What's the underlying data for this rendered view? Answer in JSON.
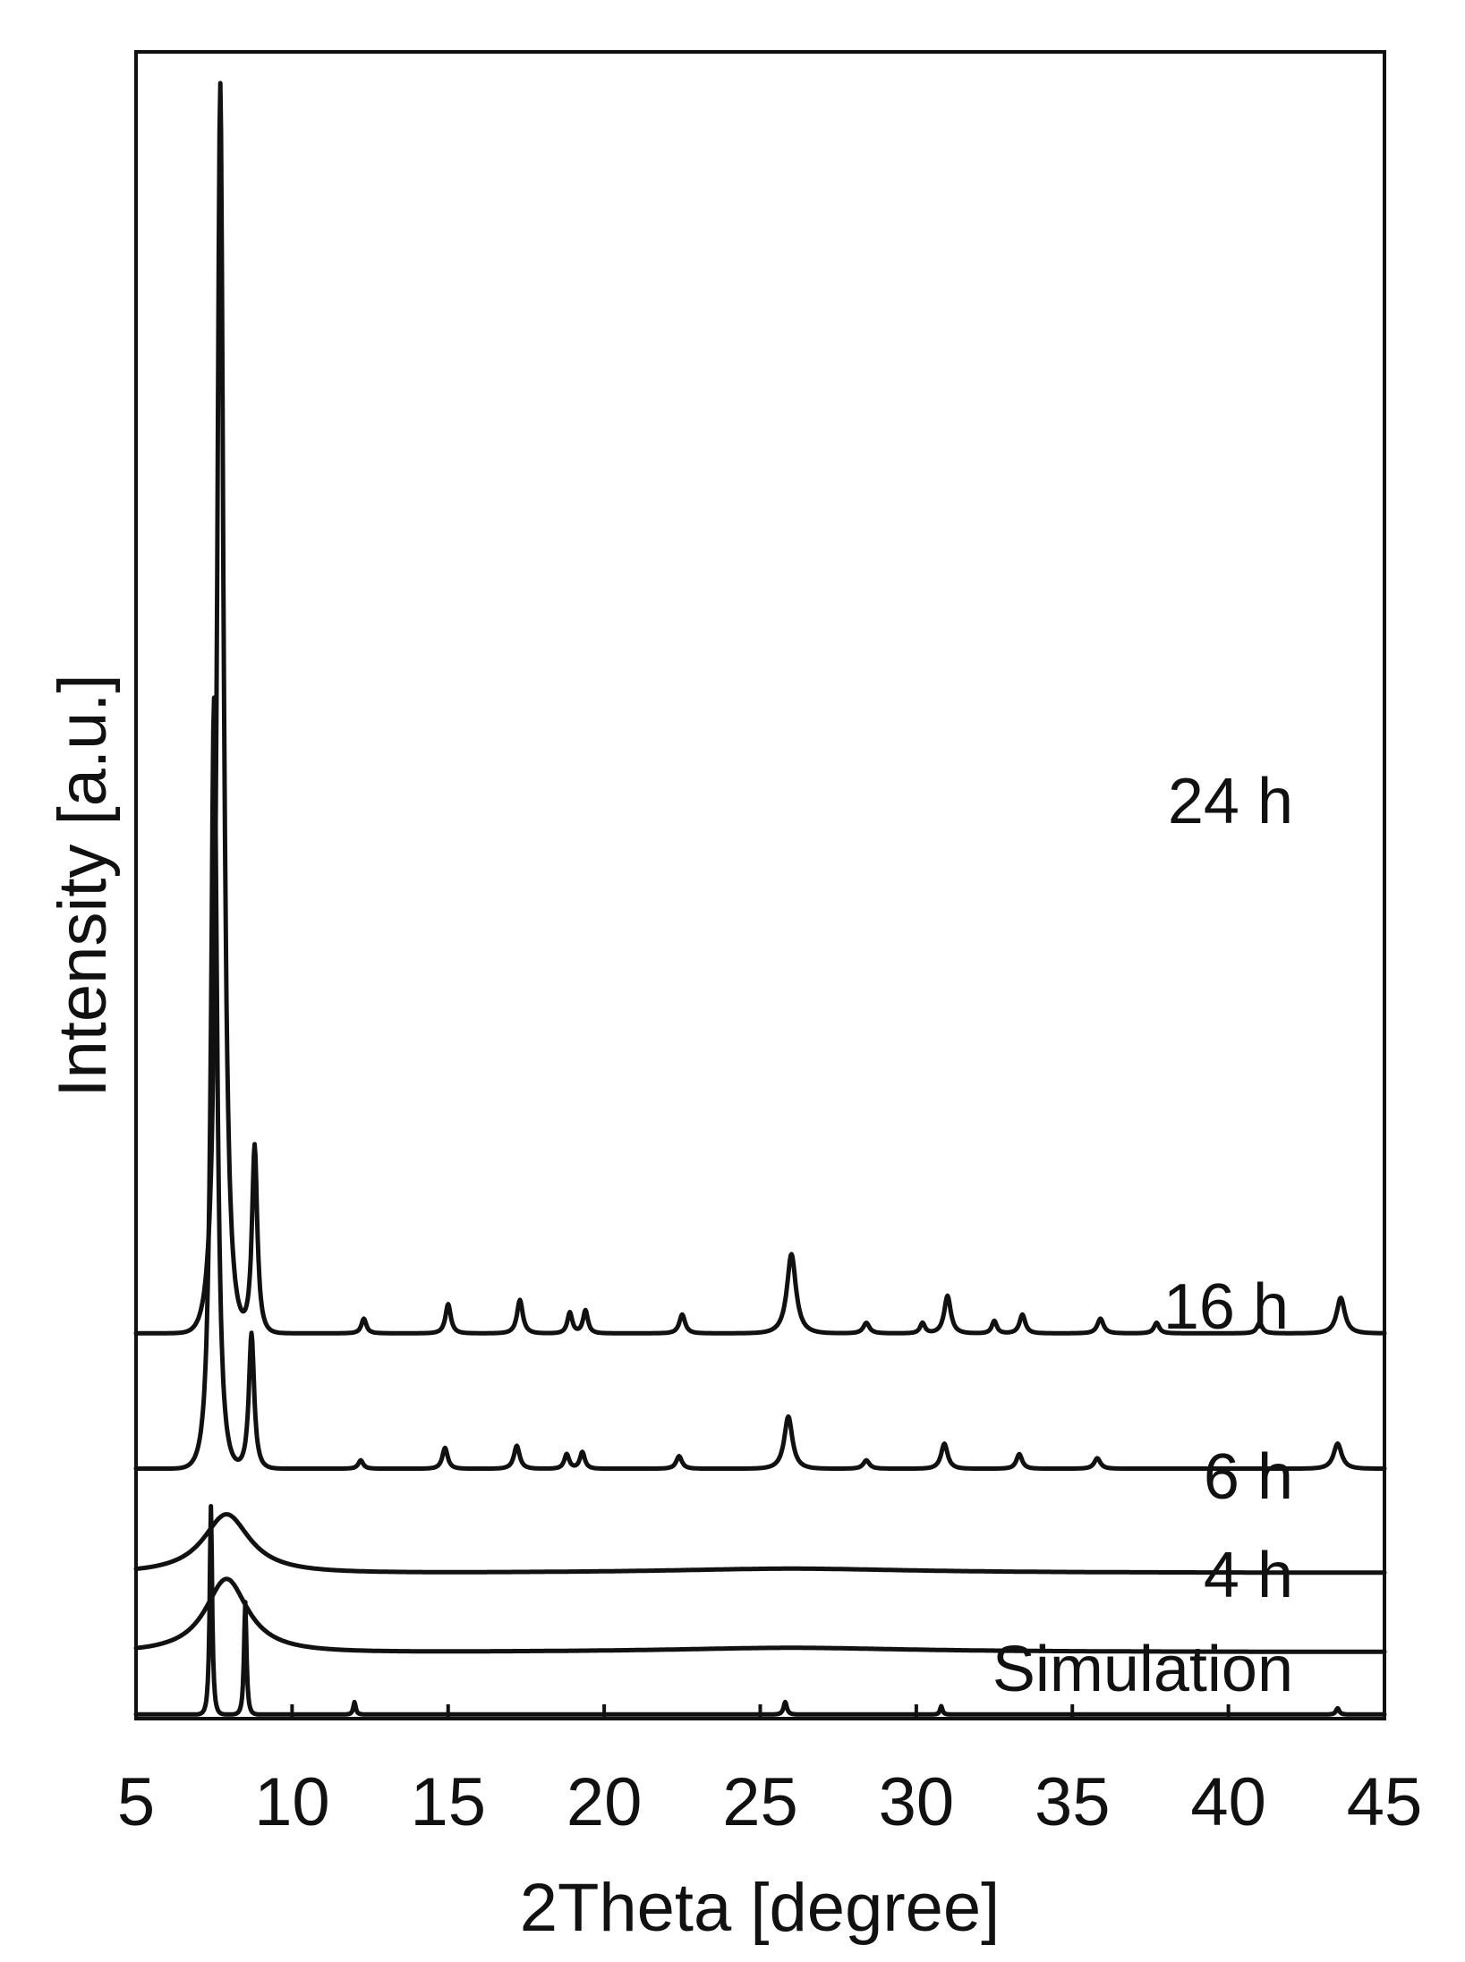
{
  "chart_data": {
    "type": "line",
    "xlabel": "2Theta [degree]",
    "ylabel": "Intensity [a.u.]",
    "xlim": [
      5,
      45
    ],
    "xticks": [
      5,
      10,
      15,
      20,
      25,
      30,
      35,
      40,
      45
    ],
    "y_tick_labels": "none",
    "grid": false,
    "legend": "none (series labels placed beside each trace)",
    "series": [
      {
        "name": "24 h",
        "baseline": 1.85,
        "peaks": [
          [
            7.7,
            6.0,
            0.16
          ],
          [
            8.8,
            0.9,
            0.13
          ],
          [
            12.3,
            0.07,
            0.12
          ],
          [
            15.0,
            0.14,
            0.13
          ],
          [
            17.3,
            0.16,
            0.14
          ],
          [
            18.9,
            0.1,
            0.12
          ],
          [
            19.4,
            0.11,
            0.12
          ],
          [
            22.5,
            0.09,
            0.14
          ],
          [
            26.0,
            0.38,
            0.22
          ],
          [
            28.4,
            0.05,
            0.15
          ],
          [
            30.2,
            0.05,
            0.12
          ],
          [
            31.0,
            0.18,
            0.16
          ],
          [
            32.5,
            0.06,
            0.12
          ],
          [
            33.4,
            0.09,
            0.14
          ],
          [
            35.9,
            0.07,
            0.15
          ],
          [
            37.7,
            0.05,
            0.13
          ],
          [
            41.0,
            0.05,
            0.13
          ],
          [
            43.6,
            0.17,
            0.2
          ]
        ]
      },
      {
        "name": "16 h",
        "baseline": 1.2,
        "peaks": [
          [
            7.5,
            3.7,
            0.15
          ],
          [
            8.7,
            0.65,
            0.13
          ],
          [
            12.2,
            0.04,
            0.12
          ],
          [
            14.9,
            0.1,
            0.13
          ],
          [
            17.2,
            0.11,
            0.14
          ],
          [
            18.8,
            0.07,
            0.12
          ],
          [
            19.3,
            0.08,
            0.12
          ],
          [
            22.4,
            0.06,
            0.14
          ],
          [
            25.9,
            0.25,
            0.2
          ],
          [
            28.4,
            0.04,
            0.15
          ],
          [
            30.9,
            0.12,
            0.16
          ],
          [
            33.3,
            0.07,
            0.14
          ],
          [
            35.8,
            0.05,
            0.15
          ],
          [
            43.5,
            0.12,
            0.2
          ]
        ]
      },
      {
        "name": "6 h",
        "baseline": 0.7,
        "peaks": [
          [
            7.9,
            0.28,
            1.15
          ],
          [
            26.0,
            0.02,
            6.0
          ]
        ]
      },
      {
        "name": "4 h",
        "baseline": 0.32,
        "peaks": [
          [
            7.9,
            0.35,
            1.05
          ],
          [
            26.0,
            0.02,
            6.0
          ]
        ]
      },
      {
        "name": "Simulation",
        "baseline": 0.02,
        "peaks": [
          [
            7.4,
            1.0,
            0.06
          ],
          [
            8.5,
            0.54,
            0.06
          ],
          [
            12.0,
            0.06,
            0.06
          ],
          [
            25.8,
            0.06,
            0.08
          ],
          [
            30.8,
            0.04,
            0.06
          ],
          [
            43.5,
            0.03,
            0.08
          ]
        ]
      }
    ]
  }
}
